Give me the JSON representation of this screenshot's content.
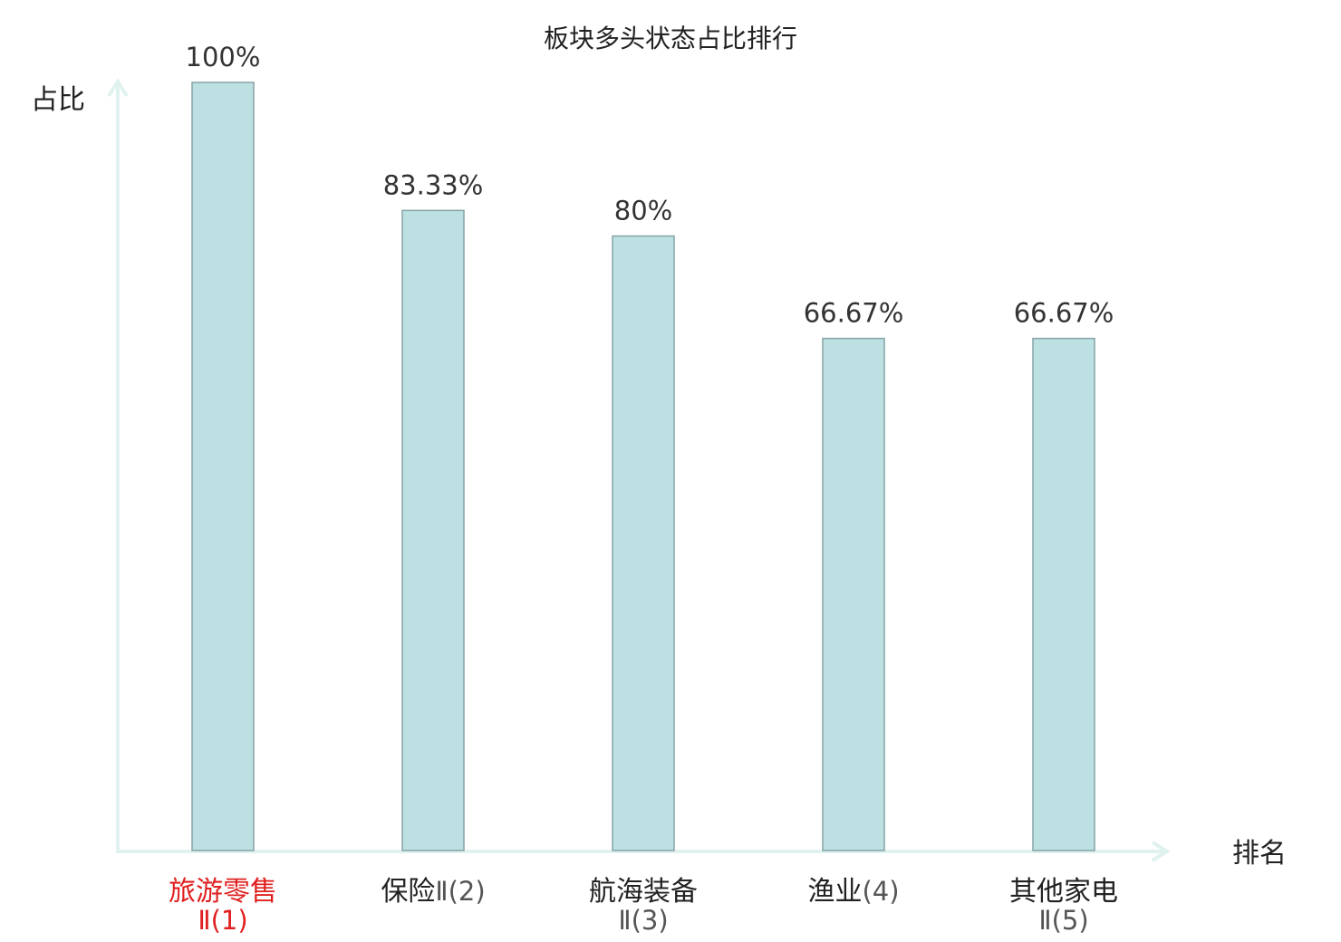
{
  "chart_data": {
    "type": "bar",
    "title": "板块多头状态占比排行",
    "ylabel": "占比",
    "xlabel": "排名",
    "ylim": [
      0,
      100
    ],
    "grid": false,
    "categories": [
      {
        "name": "旅游零售",
        "suffix": "Ⅱ(1)",
        "highlight": true
      },
      {
        "name": "保险",
        "suffix": "Ⅱ(2)",
        "highlight": false
      },
      {
        "name": "航海装备",
        "suffix": "Ⅱ(3)",
        "highlight": false
      },
      {
        "name": "渔业",
        "suffix": "(4)",
        "highlight": false
      },
      {
        "name": "其他家电",
        "suffix": "Ⅱ(5)",
        "highlight": false
      }
    ],
    "values": [
      100,
      83.33,
      80,
      66.67,
      66.67
    ],
    "value_labels": [
      "100%",
      "83.33%",
      "80%",
      "66.67%",
      "66.67%"
    ],
    "colors": {
      "bar_fill": "#bde0e2",
      "bar_stroke": "#86a4a6",
      "axis": "#e0f2ef",
      "highlight_text": "#e02020",
      "text": "#222222",
      "suffix_text": "#555555"
    }
  }
}
